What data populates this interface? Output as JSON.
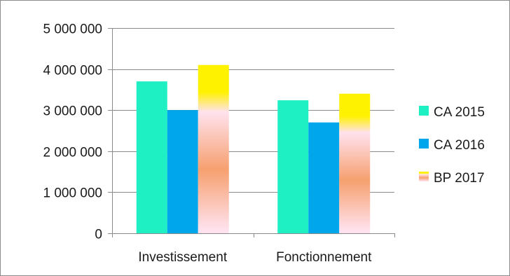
{
  "chart_data": {
    "type": "bar",
    "categories": [
      "Investissement",
      "Fonctionnement"
    ],
    "series": [
      {
        "name": "CA 2015",
        "values": [
          3700000,
          3240000
        ],
        "color": "#1ff0c4",
        "fill": "solid"
      },
      {
        "name": "CA 2016",
        "values": [
          3000000,
          2700000
        ],
        "color": "#00a6ec",
        "fill": "solid"
      },
      {
        "name": "BP 2017",
        "values": [
          4100000,
          3400000
        ],
        "color": "#f9a572",
        "fill": "gradient",
        "gradient_colors": [
          "#fff200",
          "#ffe2ee",
          "#f6a06f",
          "#ffe2ee"
        ]
      }
    ],
    "ylim": [
      0,
      5000000
    ],
    "yticks": [
      0,
      1000000,
      2000000,
      3000000,
      4000000,
      5000000
    ],
    "ytick_labels": [
      "0",
      "1 000 000",
      "2 000 000",
      "3 000 000",
      "4 000 000",
      "5 000 000"
    ],
    "grid": true,
    "legend_position": "right",
    "title": "",
    "xlabel": "",
    "ylabel": ""
  }
}
